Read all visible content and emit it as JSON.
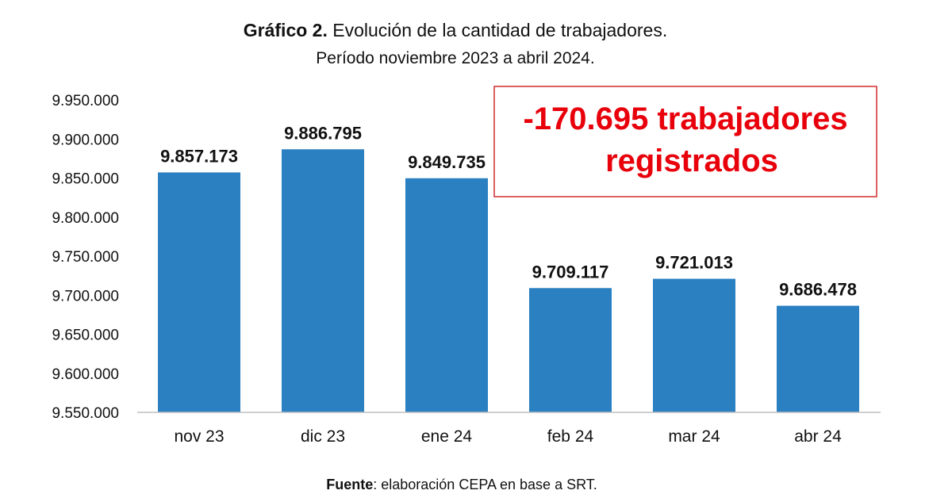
{
  "chart_data": {
    "type": "bar",
    "title_bold": "Gráfico 2.",
    "title": "Evolución de la cantidad de trabajadores.",
    "subtitle": "Período noviembre 2023 a abril 2024.",
    "categories": [
      "nov 23",
      "dic 23",
      "ene 24",
      "feb 24",
      "mar 24",
      "abr 24"
    ],
    "values": [
      9857173,
      9886795,
      9849735,
      9709117,
      9721013,
      9686478
    ],
    "data_labels": [
      "9.857.173",
      "9.886.795",
      "9.849.735",
      "9.709.117",
      "9.721.013",
      "9.686.478"
    ],
    "ylim": [
      9550000,
      9950000
    ],
    "yticks": [
      "9.550.000",
      "9.600.000",
      "9.650.000",
      "9.700.000",
      "9.750.000",
      "9.800.000",
      "9.850.000",
      "9.900.000",
      "9.950.000"
    ],
    "grid": false,
    "annotation": {
      "line1": "-170.695 trabajadores",
      "line2": "registrados",
      "color": "#e8000b"
    },
    "bar_color": "#2a80c1",
    "source_bold": "Fuente",
    "source": ": elaboración CEPA en base a SRT."
  }
}
